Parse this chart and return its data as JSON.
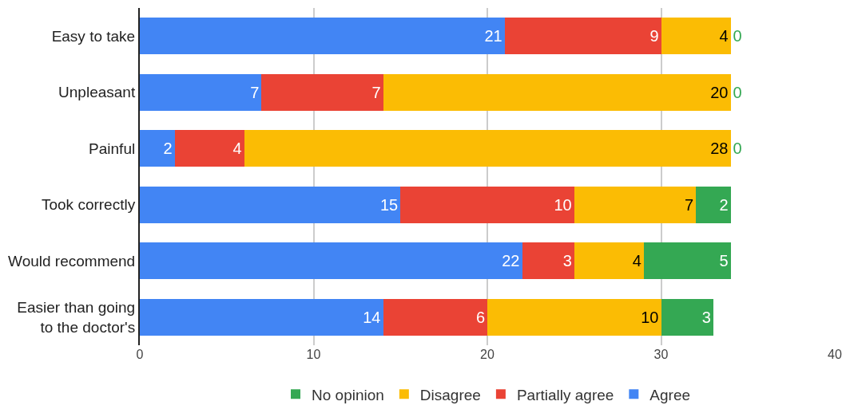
{
  "chart_data": {
    "type": "bar",
    "orientation": "horizontal",
    "stacked": true,
    "categories": [
      "Easy to take",
      "Unpleasant",
      "Painful",
      "Took correctly",
      "Would recommend",
      "Easier than going to the doctor's"
    ],
    "series": [
      {
        "name": "Agree",
        "color": "#4285f4",
        "values": [
          21,
          7,
          2,
          15,
          22,
          14
        ]
      },
      {
        "name": "Partially agree",
        "color": "#ea4335",
        "values": [
          9,
          7,
          4,
          10,
          3,
          6
        ]
      },
      {
        "name": "Disagree",
        "color": "#fbbc04",
        "values": [
          4,
          20,
          28,
          7,
          4,
          10
        ]
      },
      {
        "name": "No opinion",
        "color": "#34a853",
        "values": [
          0,
          0,
          0,
          2,
          5,
          3
        ]
      }
    ],
    "xlim": [
      0,
      40
    ],
    "xticks": [
      0,
      10,
      20,
      30,
      40
    ],
    "grid": "x",
    "legend": "bottom",
    "data_labels": true
  }
}
